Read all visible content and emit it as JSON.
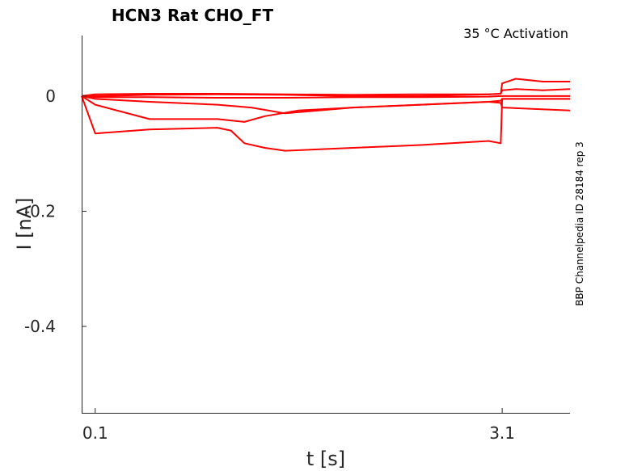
{
  "chart_data": {
    "type": "line",
    "title": "HCN3  Rat  CHO_FT",
    "annotation": "35 °C  Activation",
    "side_label": "BBP Channelpedia ID 28184 rep 3",
    "xlabel": "t [s]",
    "ylabel": "I [nA]",
    "xlim": [
      0.0,
      3.6
    ],
    "ylim": [
      -0.55,
      0.105
    ],
    "xticks": [
      {
        "v": 0.1,
        "label": "0.1"
      },
      {
        "v": 3.1,
        "label": "3.1"
      }
    ],
    "yticks": [
      {
        "v": 0,
        "label": "0"
      },
      {
        "v": -0.2,
        "label": "-0.2"
      },
      {
        "v": -0.4,
        "label": "-0.4"
      }
    ],
    "grid": false,
    "series_color": "#ff0000",
    "series": [
      {
        "x": [
          0.0,
          0.1,
          0.5,
          1.0,
          1.5,
          2.0,
          2.5,
          3.0,
          3.09,
          3.1,
          3.2,
          3.4,
          3.6
        ],
        "y": [
          0.0,
          0.0,
          0.002,
          0.003,
          0.002,
          0.0,
          0.0,
          0.003,
          0.004,
          0.022,
          0.03,
          0.025,
          0.025
        ]
      },
      {
        "x": [
          0.0,
          0.1,
          0.5,
          1.0,
          1.5,
          2.0,
          2.5,
          3.0,
          3.09,
          3.1,
          3.2,
          3.4,
          3.6
        ],
        "y": [
          0.0,
          0.003,
          0.004,
          0.004,
          0.003,
          0.002,
          0.003,
          0.003,
          0.004,
          0.01,
          0.012,
          0.01,
          0.012
        ]
      },
      {
        "x": [
          0.0,
          0.1,
          0.5,
          1.0,
          1.5,
          2.0,
          2.5,
          3.0,
          3.09,
          3.1,
          3.6
        ],
        "y": [
          0.0,
          -0.002,
          -0.002,
          -0.003,
          -0.003,
          -0.002,
          -0.002,
          -0.001,
          0.0,
          0.0,
          0.0
        ]
      },
      {
        "x": [
          0.0,
          0.1,
          0.5,
          1.0,
          1.25,
          1.5,
          2.0,
          2.5,
          3.0,
          3.09,
          3.1,
          3.6
        ],
        "y": [
          0.0,
          -0.005,
          -0.01,
          -0.015,
          -0.02,
          -0.03,
          -0.02,
          -0.015,
          -0.01,
          -0.012,
          -0.02,
          -0.025
        ]
      },
      {
        "x": [
          0.0,
          0.1,
          0.5,
          1.0,
          1.2,
          1.35,
          1.6,
          2.0,
          2.5,
          3.0,
          3.09,
          3.1,
          3.6
        ],
        "y": [
          0.0,
          -0.015,
          -0.04,
          -0.04,
          -0.045,
          -0.035,
          -0.025,
          -0.02,
          -0.015,
          -0.01,
          -0.008,
          -0.005,
          -0.005
        ]
      },
      {
        "x": [
          0.0,
          0.1,
          0.5,
          1.0,
          1.1,
          1.2,
          1.35,
          1.5,
          2.0,
          2.5,
          3.0,
          3.09,
          3.1,
          3.6
        ],
        "y": [
          0.0,
          -0.065,
          -0.058,
          -0.055,
          -0.06,
          -0.082,
          -0.09,
          -0.095,
          -0.09,
          -0.085,
          -0.078,
          -0.082,
          -0.005,
          -0.005
        ]
      }
    ]
  }
}
